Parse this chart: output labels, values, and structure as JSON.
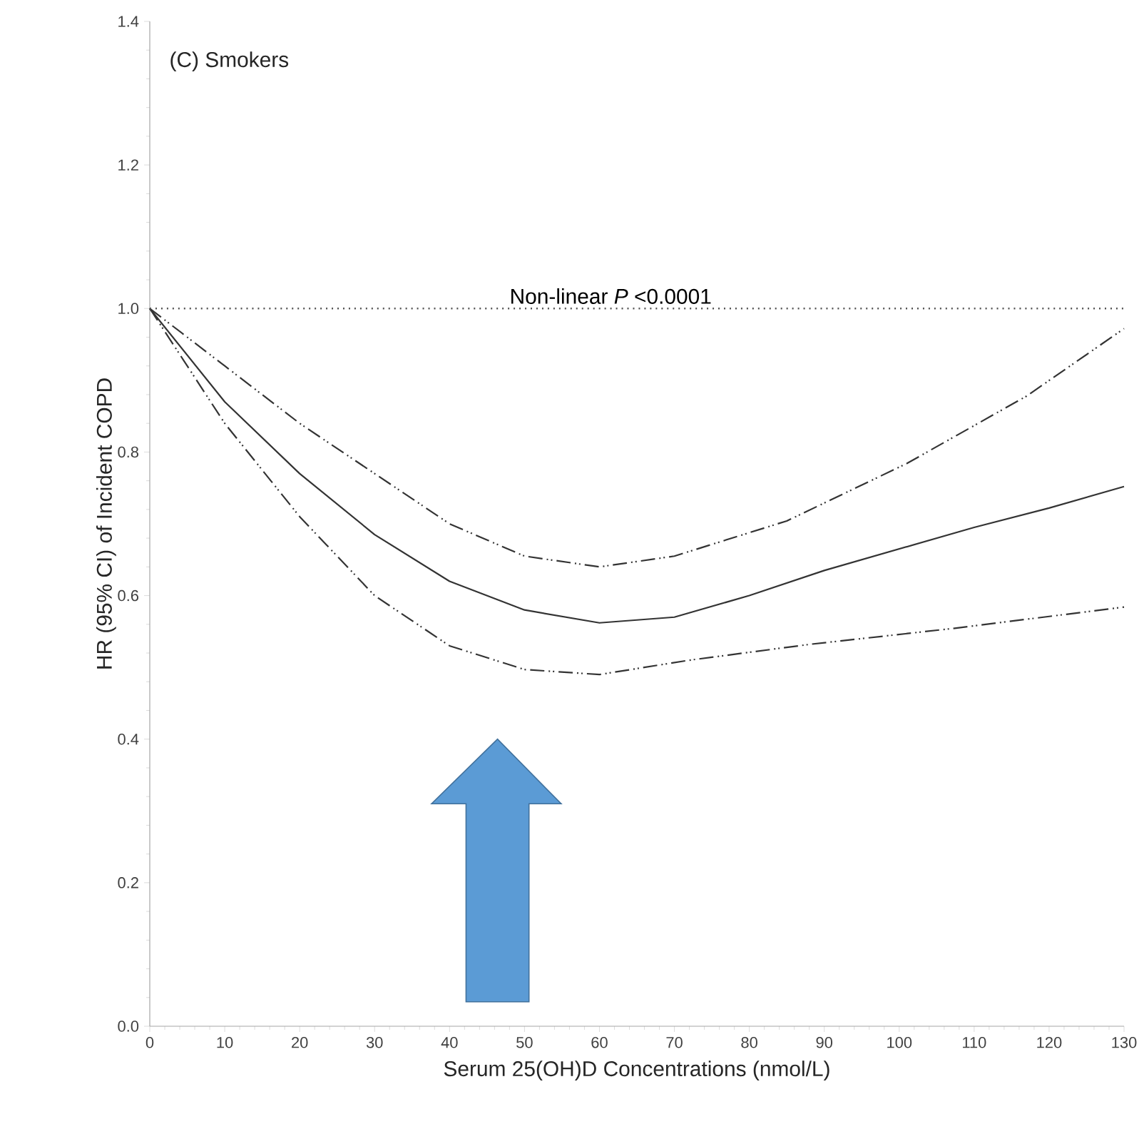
{
  "chart_data": {
    "type": "line",
    "title": "(C) Smokers",
    "xlabel": "Serum 25(OH)D Concentrations (nmol/L)",
    "ylabel": "HR (95% CI) of Incident COPD",
    "annotations": [
      {
        "text": "Non-linear *P* <0.0001",
        "x": 61.5,
        "y": 1.0
      }
    ],
    "series": [
      {
        "color": "#333333",
        "line_style": "dashed",
        "x": [
          0,
          10,
          20,
          30,
          40,
          50,
          60,
          70,
          85,
          101,
          117,
          130
        ],
        "values": [
          1.0,
          0.92,
          0.84,
          0.77,
          0.7,
          0.655,
          0.64,
          0.655,
          0.704,
          0.784,
          0.878,
          0.972
        ]
      },
      {
        "color": "#333333",
        "line_style": "solid",
        "x": [
          0,
          10,
          20,
          30,
          40,
          50,
          60,
          70,
          80,
          90,
          100,
          110,
          120,
          130
        ],
        "values": [
          1.0,
          0.87,
          0.77,
          0.685,
          0.62,
          0.58,
          0.562,
          0.57,
          0.6,
          0.635,
          0.665,
          0.695,
          0.722,
          0.752
        ]
      },
      {
        "color": "#333333",
        "line_style": "dashed",
        "x": [
          0,
          10,
          20,
          30,
          40,
          50,
          60,
          72,
          88,
          107,
          130
        ],
        "values": [
          1.0,
          0.84,
          0.71,
          0.6,
          0.53,
          0.497,
          0.49,
          0.51,
          0.532,
          0.554,
          0.584
        ]
      }
    ],
    "ref_lines": [
      {
        "axis": "y",
        "value": 1.0,
        "label": null,
        "color": "#555555",
        "line_style": "dotted"
      }
    ],
    "xlim": [
      0,
      130
    ],
    "ylim": [
      0,
      1.4
    ],
    "xticks": [
      0,
      10,
      20,
      30,
      40,
      50,
      60,
      70,
      80,
      90,
      100,
      110,
      120,
      130
    ],
    "yticks": [
      {
        "value": 0,
        "label": "0.0"
      },
      0.2,
      0.4,
      0.6,
      0.8,
      {
        "value": 1,
        "label": "1.0"
      },
      1.2,
      1.4
    ],
    "marker": "none"
  }
}
